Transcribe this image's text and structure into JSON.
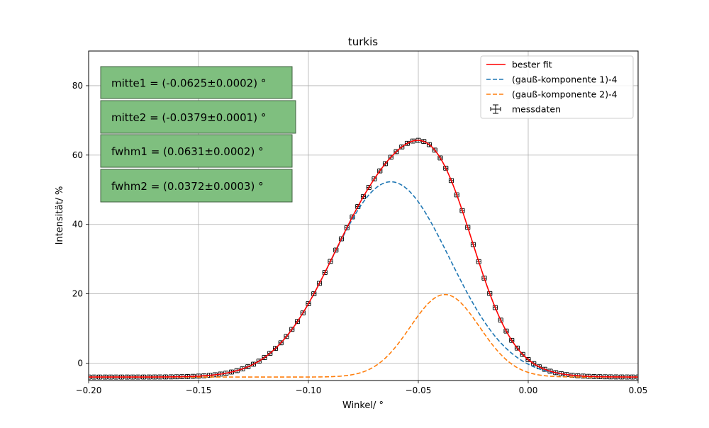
{
  "chart_data": {
    "type": "scatter",
    "title": "turkis",
    "xlabel": "Winkel/ °",
    "ylabel": "Intensität/ %",
    "xlim": [
      -0.2,
      0.05
    ],
    "ylim": [
      -5,
      90
    ],
    "xticks": [
      {
        "value": -0.2,
        "label": "−0.20"
      },
      {
        "value": -0.15,
        "label": "−0.15"
      },
      {
        "value": -0.1,
        "label": "−0.10"
      },
      {
        "value": -0.05,
        "label": "−0.05"
      },
      {
        "value": 0.0,
        "label": "0.00"
      },
      {
        "value": 0.05,
        "label": "0.05"
      }
    ],
    "yticks": [
      {
        "value": 0,
        "label": "0"
      },
      {
        "value": 20,
        "label": "20"
      },
      {
        "value": 40,
        "label": "40"
      },
      {
        "value": 60,
        "label": "60"
      },
      {
        "value": 80,
        "label": "80"
      }
    ],
    "grid": true,
    "legend_position": "top-right",
    "annotations": [
      "mitte1 = (-0.0625±0.0002) °",
      "mitte2 = (-0.0379±0.0001)  °",
      "fwhm1 = (0.0631±0.0002)  °",
      "fwhm2 = (0.0372±0.0003)  °"
    ],
    "annotation_color": "#7fbf7f",
    "series": [
      {
        "name": "bester fit",
        "kind": "line",
        "style": "solid",
        "color": "#ff0000",
        "model": {
          "sum_of": [
            "(gauß-komponente 1)-4",
            "(gauß-komponente 2)-4"
          ],
          "offset": 4
        }
      },
      {
        "name": "(gauß-komponente 1)-4",
        "kind": "line",
        "style": "dashed",
        "color": "#1f77b4",
        "model": {
          "shape": "gaussian",
          "amplitude": 56.3,
          "center": -0.0625,
          "fwhm": 0.0631,
          "offset": -4
        }
      },
      {
        "name": "(gauß-komponente 2)-4",
        "kind": "line",
        "style": "dashed",
        "color": "#ff7f0e",
        "model": {
          "shape": "gaussian",
          "amplitude": 23.8,
          "center": -0.0379,
          "fwhm": 0.0372,
          "offset": -4
        }
      },
      {
        "name": "messdaten",
        "kind": "errorbar",
        "color": "#000000",
        "x_range": [
          -0.2,
          0.05
        ],
        "x_step": 0.0025,
        "x_error": 0.001,
        "y_error": 0.6,
        "y_source": "bester fit"
      }
    ]
  }
}
